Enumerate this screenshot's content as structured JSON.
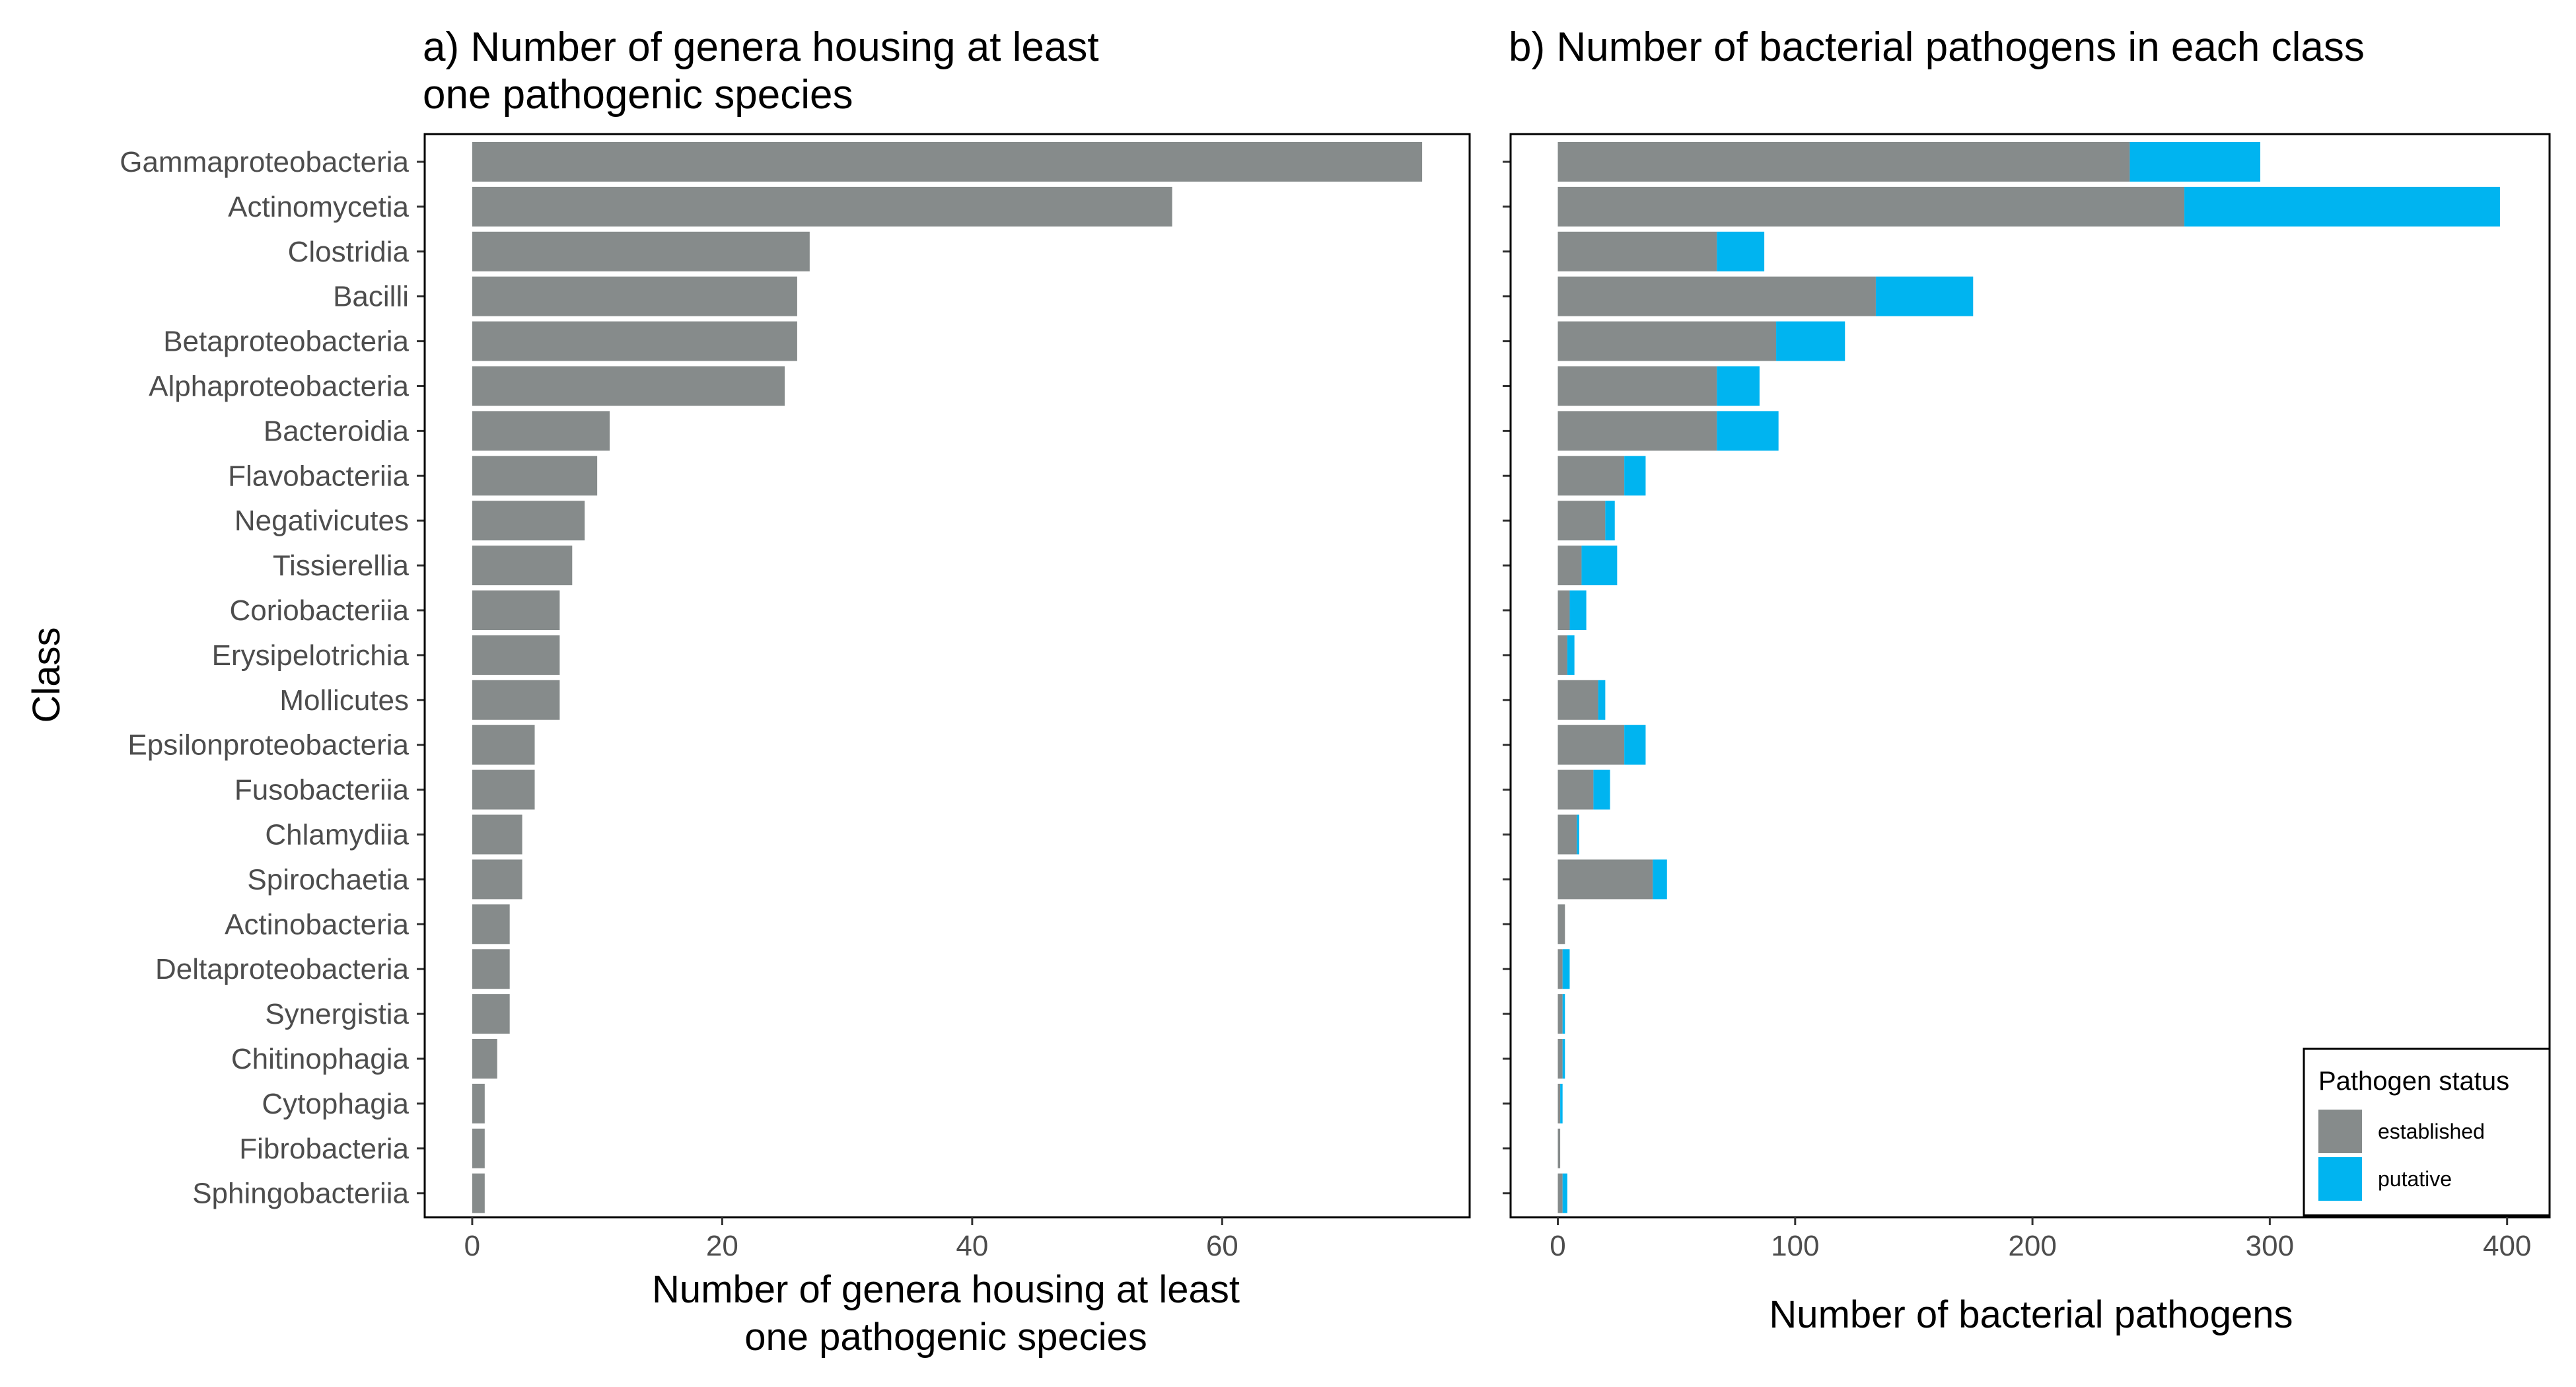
{
  "figure": {
    "y_axis_title": "Class",
    "categories": [
      "Gammaproteobacteria",
      "Actinomycetia",
      "Clostridia",
      "Bacilli",
      "Betaproteobacteria",
      "Alphaproteobacteria",
      "Bacteroidia",
      "Flavobacteriia",
      "Negativicutes",
      "Tissierellia",
      "Coriobacteriia",
      "Erysipelotrichia",
      "Mollicutes",
      "Epsilonproteobacteria",
      "Fusobacteriia",
      "Chlamydiia",
      "Spirochaetia",
      "Actinobacteria",
      "Deltaproteobacteria",
      "Synergistia",
      "Chitinophagia",
      "Cytophagia",
      "Fibrobacteria",
      "Sphingobacteriia"
    ],
    "colors": {
      "established": "#868b8b",
      "putative": "#00b4f0"
    }
  },
  "chart_data": [
    {
      "type": "bar",
      "orientation": "horizontal",
      "title_lines": [
        "a) Number of genera housing at least",
        "one pathogenic species"
      ],
      "xlabel_lines": [
        "Number of genera housing at least",
        "one pathogenic species"
      ],
      "ylabel": "Class",
      "categories": [
        "Gammaproteobacteria",
        "Actinomycetia",
        "Clostridia",
        "Bacilli",
        "Betaproteobacteria",
        "Alphaproteobacteria",
        "Bacteroidia",
        "Flavobacteriia",
        "Negativicutes",
        "Tissierellia",
        "Coriobacteriia",
        "Erysipelotrichia",
        "Mollicutes",
        "Epsilonproteobacteria",
        "Fusobacteriia",
        "Chlamydiia",
        "Spirochaetia",
        "Actinobacteria",
        "Deltaproteobacteria",
        "Synergistia",
        "Chitinophagia",
        "Cytophagia",
        "Fibrobacteria",
        "Sphingobacteriia"
      ],
      "values": [
        76,
        56,
        27,
        26,
        26,
        25,
        11,
        10,
        9,
        8,
        7,
        7,
        7,
        5,
        5,
        4,
        4,
        3,
        3,
        3,
        2,
        1,
        1,
        1
      ],
      "xlim": [
        -3.8,
        79.8
      ],
      "xticks": [
        0,
        20,
        40,
        60
      ],
      "xtick_labels": [
        "0",
        "20",
        "40",
        "60"
      ],
      "grid": false
    },
    {
      "type": "bar",
      "orientation": "horizontal",
      "stacked": true,
      "title_lines": [
        "b) Number of bacterial pathogens in each class"
      ],
      "xlabel_lines": [
        "Number of bacterial pathogens"
      ],
      "categories": [
        "Gammaproteobacteria",
        "Actinomycetia",
        "Clostridia",
        "Bacilli",
        "Betaproteobacteria",
        "Alphaproteobacteria",
        "Bacteroidia",
        "Flavobacteriia",
        "Negativicutes",
        "Tissierellia",
        "Coriobacteriia",
        "Erysipelotrichia",
        "Mollicutes",
        "Epsilonproteobacteria",
        "Fusobacteriia",
        "Chlamydiia",
        "Spirochaetia",
        "Actinobacteria",
        "Deltaproteobacteria",
        "Synergistia",
        "Chitinophagia",
        "Cytophagia",
        "Fibrobacteria",
        "Sphingobacteriia"
      ],
      "series": [
        {
          "name": "established",
          "values": [
            241,
            264,
            67,
            134,
            92,
            67,
            67,
            28,
            20,
            10,
            5,
            4,
            17,
            28,
            15,
            8,
            40,
            3,
            2,
            2,
            2,
            1,
            1,
            2
          ]
        },
        {
          "name": "putative",
          "values": [
            55,
            133,
            20,
            41,
            29,
            18,
            26,
            9,
            4,
            15,
            7,
            3,
            3,
            9,
            7,
            1,
            6,
            0,
            3,
            1,
            1,
            1,
            0,
            2
          ]
        }
      ],
      "xlim": [
        -19.9,
        417.9
      ],
      "xticks": [
        0,
        100,
        200,
        300,
        400
      ],
      "xtick_labels": [
        "0",
        "100",
        "200",
        "300",
        "400"
      ],
      "grid": false,
      "legend": {
        "title": "Pathogen status",
        "placement": "bottom-right inside",
        "entries": [
          "established",
          "putative"
        ]
      }
    }
  ]
}
